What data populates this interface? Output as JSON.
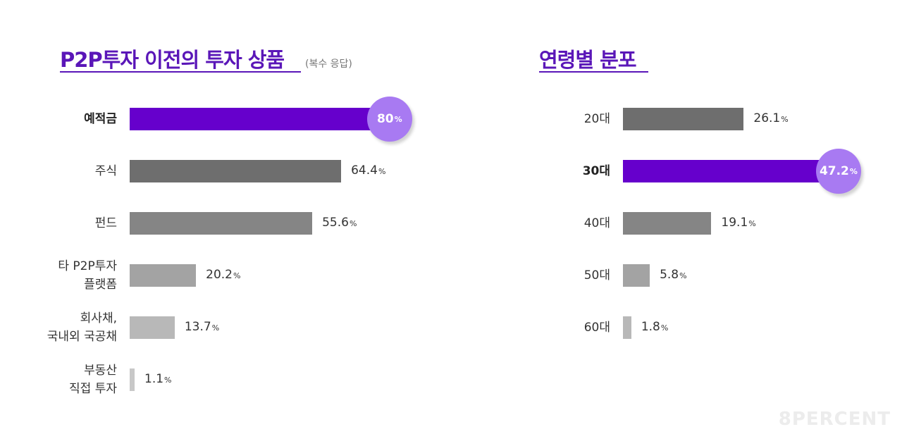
{
  "chart_data": [
    {
      "type": "bar",
      "orientation": "horizontal",
      "title": "P2P투자 이전의 투자 상품",
      "subtitle": "(복수 응답)",
      "categories": [
        "예적금",
        "주식",
        "펀드",
        "타 P2P투자\n플랫폼",
        "회사채,\n국내외 국공채",
        "부동산\n직접 투자"
      ],
      "values": [
        80,
        64.4,
        55.6,
        20.2,
        13.7,
        1.1
      ],
      "value_labels": [
        "80",
        "64.4",
        "55.6",
        "20.2",
        "13.7",
        "1.1"
      ],
      "unit": "%",
      "highlight_index": 0,
      "colors": [
        "#6600cc",
        "#6e6e6e",
        "#858585",
        "#a3a3a3",
        "#b8b8b8",
        "#c8c8c8"
      ],
      "xlim": [
        0,
        100
      ]
    },
    {
      "type": "bar",
      "orientation": "horizontal",
      "title": "연령별 분포",
      "categories": [
        "20대",
        "30대",
        "40대",
        "50대",
        "60대"
      ],
      "values": [
        26.1,
        47.2,
        19.1,
        5.8,
        1.8
      ],
      "value_labels": [
        "26.1",
        "47.2",
        "19.1",
        "5.8",
        "1.8"
      ],
      "unit": "%",
      "highlight_index": 1,
      "colors": [
        "#6e6e6e",
        "#6600cc",
        "#858585",
        "#a3a3a3",
        "#b8b8b8"
      ],
      "xlim": [
        0,
        60
      ]
    }
  ],
  "colors": {
    "accent": "#5a16b8",
    "bubble": "#a87af2"
  },
  "brand": "8PERCENT"
}
